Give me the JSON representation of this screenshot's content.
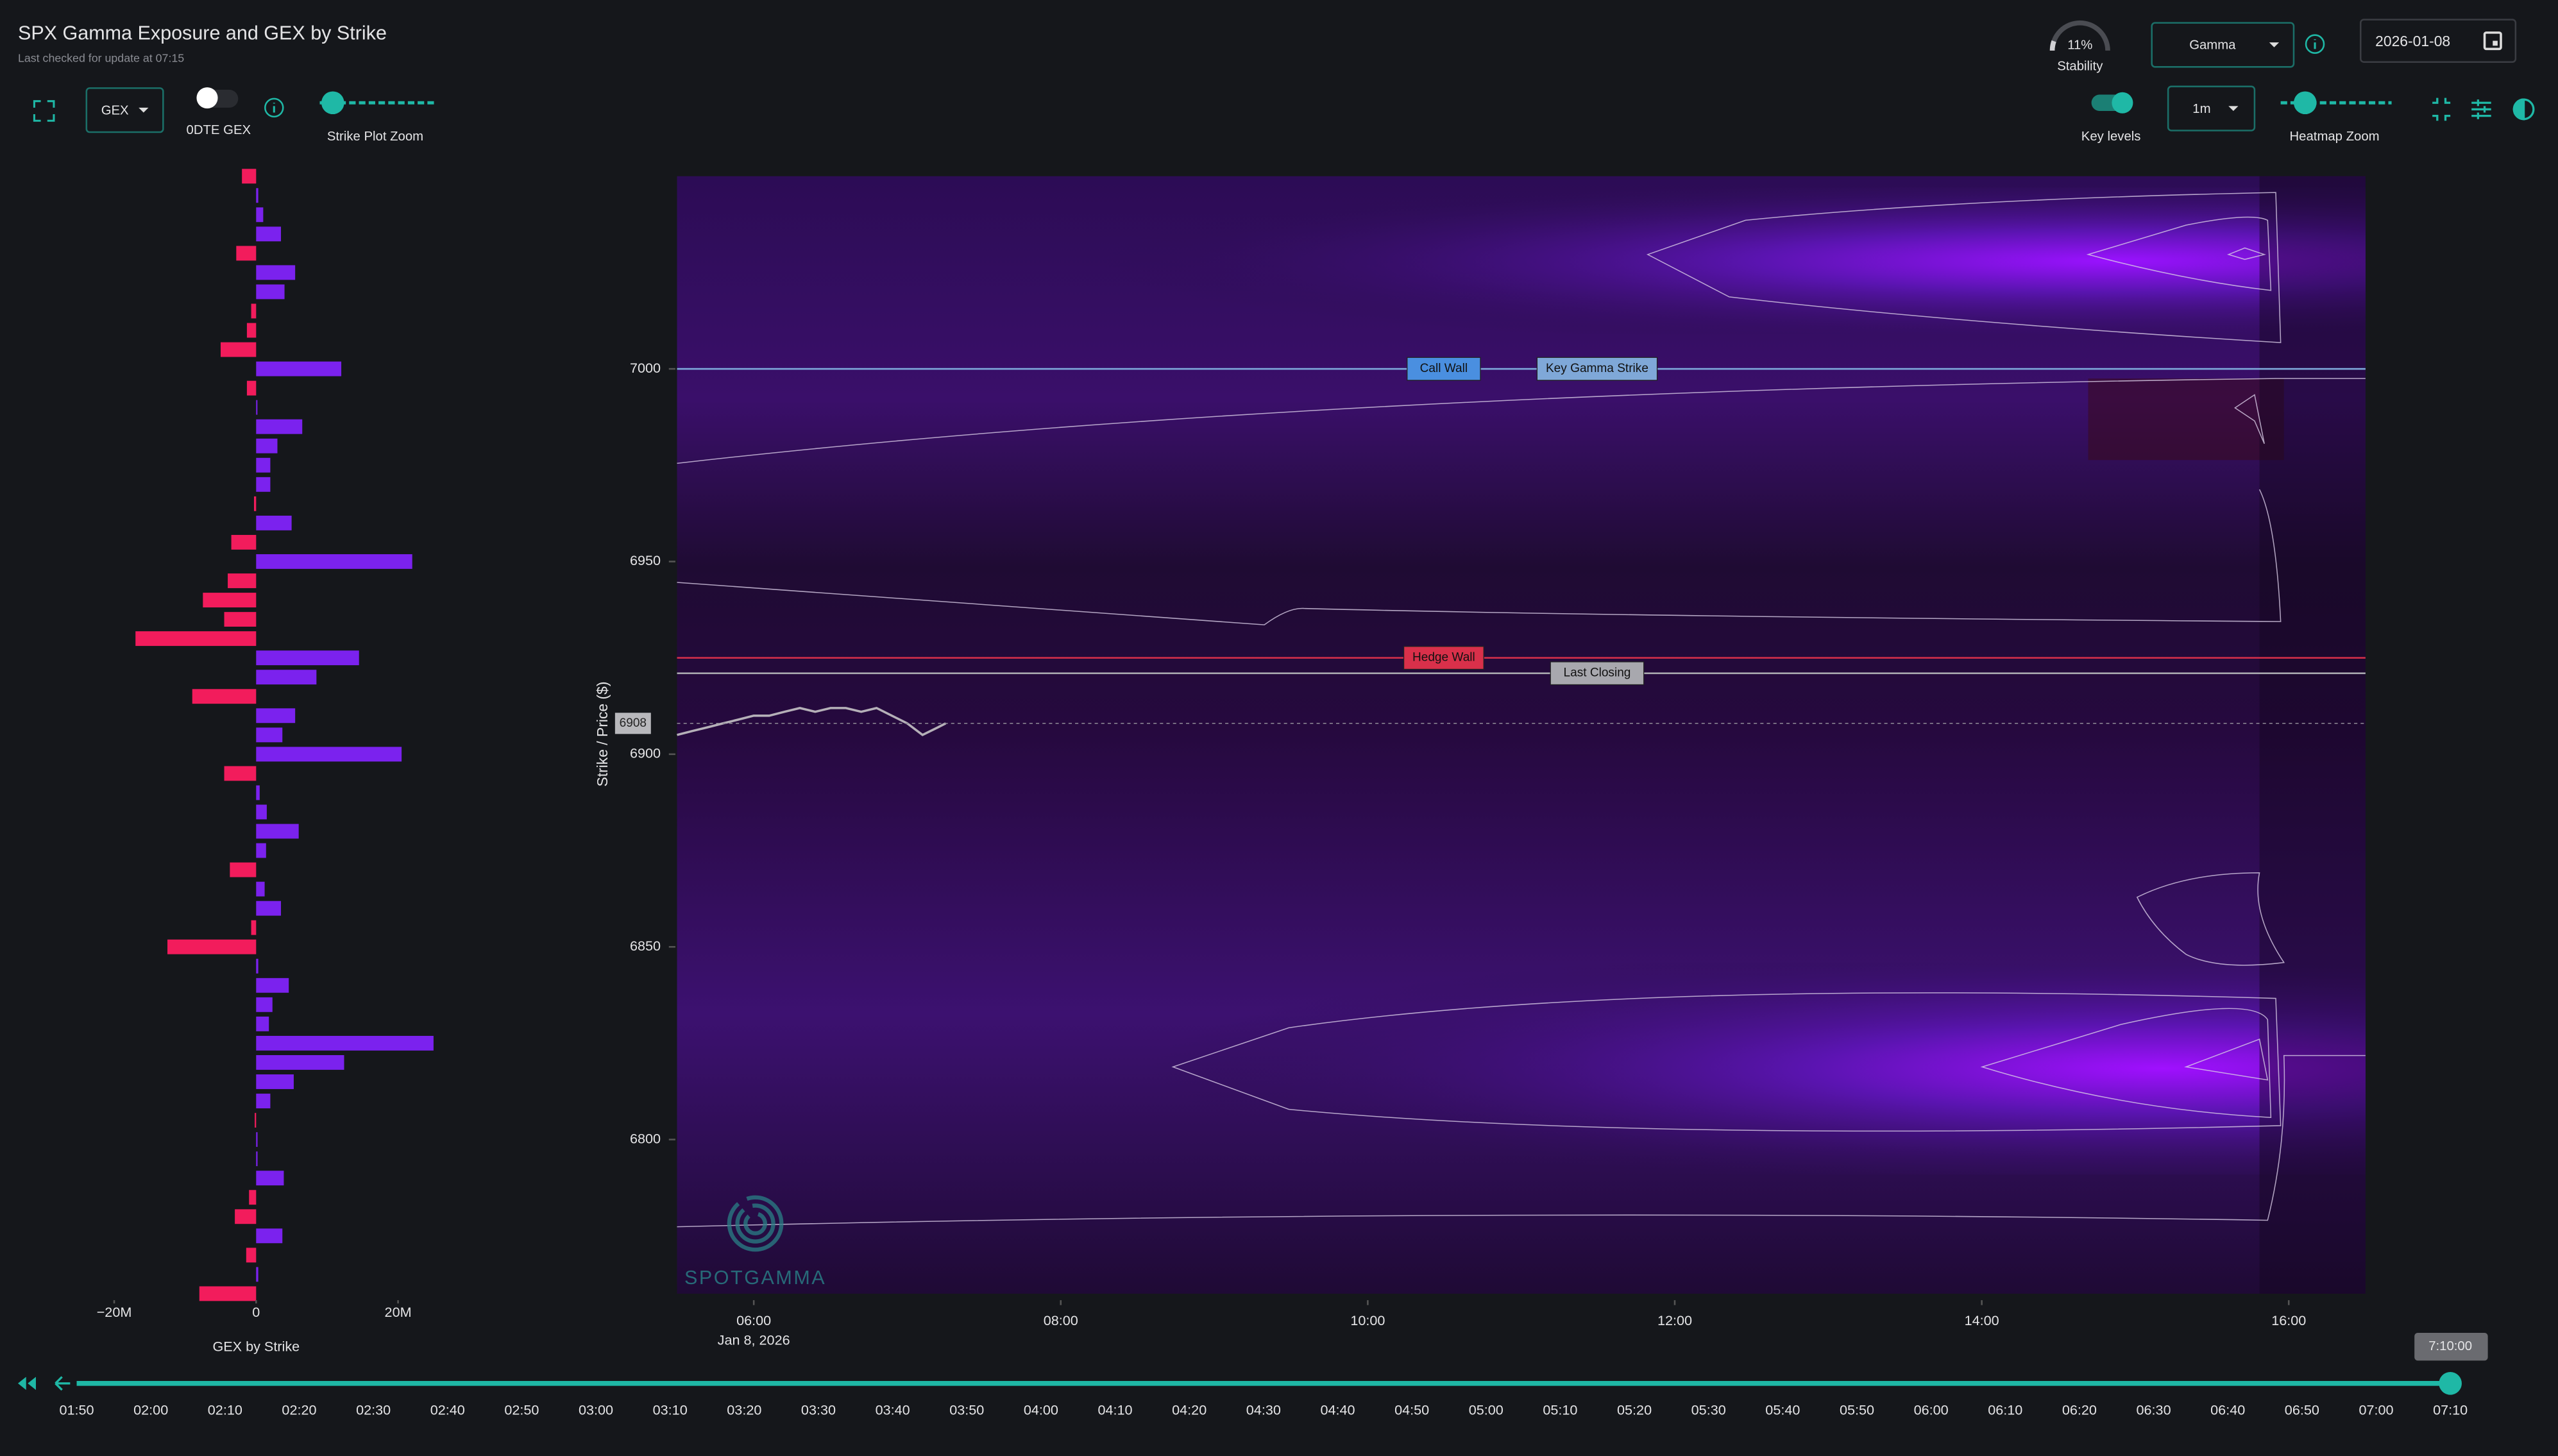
{
  "header": {
    "title": "SPX Gamma Exposure and GEX by Strike",
    "subtitle": "Last checked for update at 07:15"
  },
  "controls": {
    "gex_select": "GEX",
    "odte_label": "0DTE GEX",
    "strike_zoom_label": "Strike Plot Zoom",
    "stability": {
      "value": 11,
      "label": "11%"
    },
    "stability_label": "Stability",
    "heatmap_select": "Gamma",
    "date": "2026-01-08",
    "key_levels_label": "Key levels",
    "interval_select": "1m",
    "heatmap_zoom_label": "Heatmap Zoom"
  },
  "chart_data": [
    {
      "type": "bar",
      "orientation": "horizontal",
      "title": "GEX by Strike",
      "y": [
        7050,
        7045,
        7040,
        7035,
        7030,
        7025,
        7020,
        7015,
        7010,
        7005,
        7000,
        6995,
        6990,
        6985,
        6980,
        6975,
        6970,
        6965,
        6960,
        6955,
        6950,
        6945,
        6940,
        6935,
        6930,
        6925,
        6920,
        6915,
        6910,
        6905,
        6900,
        6895,
        6890,
        6885,
        6880,
        6875,
        6870,
        6865,
        6860,
        6855,
        6850,
        6845,
        6840,
        6835,
        6830,
        6825,
        6820,
        6815,
        6810,
        6805,
        6800,
        6795,
        6790,
        6785,
        6780,
        6775,
        6770,
        6765,
        6760
      ],
      "values": [
        -2,
        0.3,
        1,
        3.5,
        -2.8,
        5.5,
        4,
        -0.7,
        -1.3,
        -5,
        12,
        -1.3,
        0,
        6.5,
        3,
        2,
        2,
        -0.3,
        5,
        -3.5,
        22,
        -4,
        -7.5,
        -4.5,
        -17,
        14.5,
        8.5,
        -9,
        5.5,
        3.7,
        20.5,
        -4.5,
        0.5,
        1.5,
        6,
        1.4,
        -3.7,
        1.2,
        3.5,
        -0.7,
        -12.5,
        0.3,
        4.6,
        2.3,
        1.8,
        25,
        12.4,
        5.3,
        2,
        -0.2,
        0.2,
        0.2,
        3.9,
        -1,
        -3,
        3.7,
        -1.4,
        0.3,
        -8
      ],
      "positive_color": "#7b22ee",
      "negative_color": "#f21c5c",
      "xlim": [
        -35,
        35
      ],
      "xticks": [
        {
          "value": -20,
          "label": "−20M"
        },
        0,
        {
          "value": 20,
          "label": "20M"
        }
      ],
      "ylim": [
        6760,
        7050
      ]
    },
    {
      "type": "heatmap",
      "y_label": "Strike / Price ($)",
      "xlim": [
        5.5,
        16.5
      ],
      "xticks": [
        {
          "value": 6,
          "label": "06:00"
        },
        {
          "value": 8,
          "label": "08:00"
        },
        {
          "value": 10,
          "label": "10:00"
        },
        {
          "value": 12,
          "label": "12:00"
        },
        {
          "value": 14,
          "label": "14:00"
        },
        {
          "value": 16,
          "label": "16:00"
        }
      ],
      "x_date_label": "Jan 8, 2026",
      "ylim": [
        6760,
        7050
      ],
      "yticks": [
        6800,
        6850,
        6900,
        6950,
        7000
      ],
      "levels": [
        {
          "name": "Call Wall",
          "value": 7000,
          "color": "#4a8fe0"
        },
        {
          "name": "Key Gamma Strike",
          "value": 7000,
          "color": "#7fa8d8"
        },
        {
          "name": "Hedge Wall",
          "value": 6925,
          "color": "#d9304a"
        },
        {
          "name": "Last Closing",
          "value": 6921,
          "color": "#a8a8ae"
        }
      ],
      "price": {
        "x": [
          5.5,
          5.6,
          5.7,
          5.8,
          5.9,
          6.0,
          6.1,
          6.2,
          6.3,
          6.4,
          6.5,
          6.6,
          6.7,
          6.8,
          6.9,
          7.0,
          7.1,
          7.2,
          7.25
        ],
        "values": [
          6905,
          6906,
          6907,
          6908,
          6909,
          6910,
          6910,
          6911,
          6912,
          6911,
          6912,
          6912,
          6911,
          6912,
          6910,
          6908,
          6905,
          6907,
          6908
        ],
        "color": "#b5b0b8",
        "last": 6908
      }
    }
  ],
  "timeline": {
    "labels": [
      "01:50",
      "02:00",
      "02:10",
      "02:20",
      "02:30",
      "02:40",
      "02:50",
      "03:00",
      "03:10",
      "03:20",
      "03:30",
      "03:40",
      "03:50",
      "04:00",
      "04:10",
      "04:20",
      "04:30",
      "04:40",
      "04:50",
      "05:00",
      "05:10",
      "05:20",
      "05:30",
      "05:40",
      "05:50",
      "06:00",
      "06:10",
      "06:20",
      "06:30",
      "06:40",
      "06:50",
      "07:00",
      "07:10"
    ],
    "current": "7:10:00"
  },
  "watermark": "SPOTGAMMA"
}
